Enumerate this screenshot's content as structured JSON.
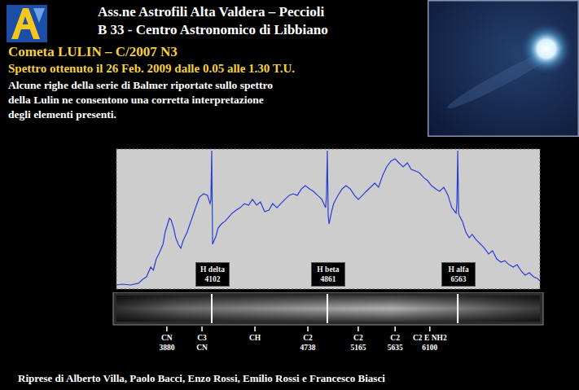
{
  "header": {
    "lines": [
      "Ass.ne Astrofili Alta Valdera – Peccioli",
      "B 33 - Centro Astronomico di Libbiano"
    ]
  },
  "chart_data": {
    "type": "line",
    "title": "Cometa LULIN – C/2007 N3",
    "subtitle": "Spettro ottenuto il 26 Feb. 2009 dalle 0.05 alle 1.30 T.U.",
    "description": [
      "Alcune righe della serie di Balmer riportate sullo spettro",
      "della Lulin ne consentono una corretta interpretazione",
      "degli elementi presenti."
    ],
    "x": [
      0.0,
      1.3,
      3.3,
      5.2,
      6.2,
      7.1,
      8.1,
      8.7,
      9.4,
      10.0,
      11.0,
      11.5,
      12.1,
      12.5,
      12.9,
      13.5,
      14.0,
      14.6,
      15.2,
      15.8,
      16.7,
      17.7,
      18.7,
      19.6,
      20.6,
      21.5,
      22.1,
      22.3,
      22.5,
      22.7,
      23.5,
      24.0,
      24.8,
      25.6,
      26.3,
      27.3,
      28.3,
      29.2,
      30.2,
      31.2,
      32.1,
      33.1,
      34.0,
      35.0,
      36.0,
      36.9,
      37.9,
      38.8,
      39.8,
      40.8,
      41.7,
      42.7,
      43.7,
      44.6,
      45.6,
      46.5,
      47.5,
      48.5,
      49.4,
      49.6,
      49.8,
      50.0,
      50.2,
      50.8,
      51.3,
      52.3,
      53.3,
      54.2,
      55.2,
      56.2,
      57.1,
      58.1,
      59.0,
      60.0,
      61.0,
      61.9,
      62.9,
      63.8,
      64.8,
      65.8,
      66.7,
      67.7,
      68.7,
      69.6,
      70.6,
      71.5,
      72.5,
      73.5,
      74.4,
      75.4,
      76.3,
      77.3,
      78.3,
      79.2,
      80.2,
      80.4,
      80.6,
      80.8,
      81.0,
      81.7,
      82.5,
      83.3,
      84.0,
      85.0,
      86.0,
      86.9,
      87.9,
      88.8,
      89.8,
      90.8,
      91.7,
      92.7,
      93.7,
      94.6,
      95.6,
      96.5,
      97.5,
      98.5,
      99.4,
      100.0
    ],
    "values": [
      2.9,
      3.5,
      2.9,
      4.1,
      7.0,
      8.7,
      15.7,
      13.4,
      21.5,
      25.0,
      32.0,
      40.7,
      46.5,
      50.6,
      49.4,
      43.6,
      36.6,
      32.0,
      29.1,
      34.9,
      40.7,
      49.4,
      58.1,
      65.7,
      68.0,
      66.9,
      61.0,
      63.4,
      98.8,
      32.0,
      37.8,
      43.6,
      46.5,
      48.3,
      50.6,
      54.1,
      56.4,
      58.1,
      61.0,
      59.9,
      64.0,
      59.9,
      62.2,
      55.2,
      56.4,
      61.0,
      58.1,
      61.0,
      64.0,
      66.9,
      68.0,
      66.9,
      71.5,
      73.8,
      71.5,
      69.8,
      66.9,
      64.0,
      58.1,
      66.9,
      98.8,
      52.3,
      46.5,
      55.2,
      61.0,
      66.9,
      71.5,
      73.8,
      71.5,
      66.9,
      64.0,
      66.9,
      69.8,
      72.7,
      75.6,
      72.7,
      81.4,
      87.2,
      91.3,
      93.0,
      90.1,
      87.2,
      90.1,
      85.5,
      84.3,
      83.1,
      79.7,
      77.3,
      73.8,
      71.5,
      69.8,
      72.7,
      66.9,
      58.1,
      54.1,
      61.0,
      98.8,
      54.1,
      52.3,
      48.3,
      40.7,
      36.6,
      39.0,
      34.9,
      32.0,
      29.1,
      25.0,
      27.3,
      21.5,
      19.2,
      20.3,
      17.4,
      15.7,
      17.4,
      12.8,
      9.9,
      11.6,
      8.7,
      7.6,
      5.8
    ],
    "color": "#2a3cd8",
    "line_style": "solid",
    "marker": "none",
    "xlim": [
      0,
      100
    ],
    "xticks": [
      0,
      12.5,
      25,
      37.5,
      50,
      62.5,
      75,
      87.5,
      100
    ],
    "ylim": [
      0,
      100
    ],
    "yticks": [
      0,
      20,
      40,
      60,
      80,
      100
    ],
    "grid": true,
    "tick_labels": false,
    "balmer_lines": [
      {
        "name": "H delta",
        "wavelength": 4102,
        "x": 22.5
      },
      {
        "name": "H beta",
        "wavelength": 4861,
        "x": 49.8
      },
      {
        "name": "H alfa",
        "wavelength": 6563,
        "x": 80.6
      }
    ],
    "bands": [
      {
        "name": "CN",
        "wavelength": 3880,
        "x": 11.9
      },
      {
        "name": "C3",
        "name2": "CN",
        "x": 20.2
      },
      {
        "name": "CH",
        "x": 32.7
      },
      {
        "name": "C2",
        "wavelength": 4738,
        "x": 45.2
      },
      {
        "name": "C2",
        "wavelength": 5165,
        "x": 57.1
      },
      {
        "name": "C2",
        "wavelength": 5635,
        "x": 65.8
      },
      {
        "name": "C2 E NH2",
        "wavelength": 6100,
        "x": 74.0
      }
    ]
  },
  "credits": "Riprese di Alberto Villa, Paolo Bacci, Enzo Rossi, Emilio Rossi e Francesco Biasci"
}
